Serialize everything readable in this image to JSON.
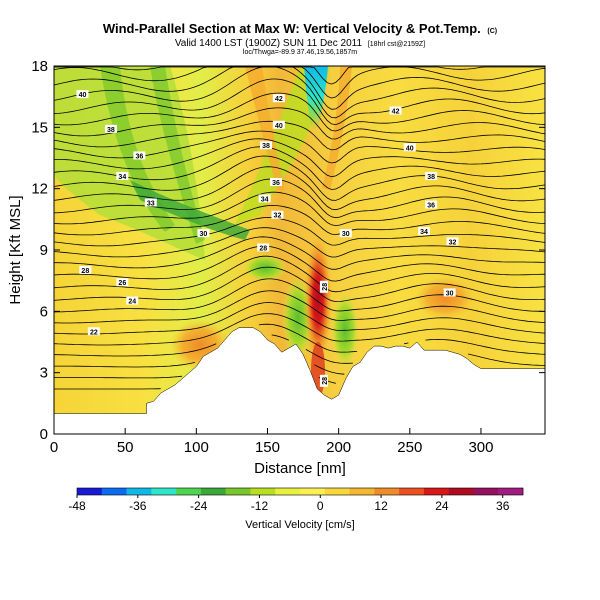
{
  "chart_data": {
    "type": "heatmap",
    "title": "Wind-Parallel Section at Max W: Vertical Velocity & Pot.Temp.",
    "copyright": "(C)",
    "subtitle": "Valid 1400 LST (1900Z) SUN 11 Dec 2011",
    "subtitle_tag": "[18hrl cst@2159Z]",
    "location_line": "loc/Thwga=-89.9 37.46,19.56,1857m",
    "xlabel": "Distance [nm]",
    "ylabel": "Height [Kft MSL]",
    "xlim": [
      0,
      345
    ],
    "ylim": [
      0,
      18
    ],
    "xticks": [
      0,
      50,
      100,
      150,
      200,
      250,
      300
    ],
    "yticks": [
      0,
      3,
      6,
      9,
      12,
      15,
      18
    ],
    "colorbar": {
      "label": "Vertical Velocity [cm/s]",
      "range": [
        -48,
        40
      ],
      "ticks": [
        -48,
        -36,
        -24,
        -12,
        0,
        12,
        24,
        36
      ],
      "colors": [
        "#1a1ad6",
        "#0a6cf0",
        "#10b8e8",
        "#2ee6c8",
        "#4cd650",
        "#3aa83a",
        "#78c828",
        "#b8e020",
        "#e8f040",
        "#fcf050",
        "#f8d838",
        "#f4b830",
        "#f08c28",
        "#ec5020",
        "#d81818",
        "#b00c20",
        "#961060",
        "#a01c80"
      ]
    },
    "terrain": {
      "x": [
        0,
        60,
        60,
        65,
        65,
        70,
        75,
        80,
        85,
        90,
        95,
        100,
        105,
        110,
        115,
        120,
        125,
        130,
        135,
        140,
        145,
        150,
        155,
        160,
        165,
        170,
        175,
        180,
        185,
        190,
        195,
        200,
        205,
        210,
        215,
        220,
        225,
        230,
        235,
        240,
        245,
        250,
        255,
        260,
        265,
        270,
        275,
        280,
        285,
        290,
        295,
        300,
        345
      ],
      "height": [
        1.0,
        1.0,
        1.0,
        1.0,
        1.5,
        1.6,
        2.0,
        2.2,
        2.4,
        2.7,
        3.0,
        3.3,
        3.8,
        4.0,
        4.2,
        4.6,
        5.0,
        5.2,
        5.2,
        5.2,
        5.0,
        4.6,
        4.4,
        4.0,
        4.2,
        4.4,
        3.9,
        3.1,
        2.2,
        1.9,
        1.7,
        1.9,
        2.7,
        3.3,
        3.5,
        4.0,
        4.3,
        4.3,
        4.2,
        4.3,
        4.3,
        4.2,
        4.5,
        4.1,
        4.1,
        4.1,
        4.1,
        4.0,
        3.9,
        3.7,
        3.4,
        3.2,
        3.2
      ]
    },
    "contour_labels": [
      {
        "value": "40",
        "x": 20,
        "y": 16.6
      },
      {
        "value": "38",
        "x": 40,
        "y": 14.9
      },
      {
        "value": "36",
        "x": 60,
        "y": 13.6
      },
      {
        "value": "34",
        "x": 48,
        "y": 12.6
      },
      {
        "value": "33",
        "x": 68,
        "y": 11.3
      },
      {
        "value": "30",
        "x": 105,
        "y": 9.8
      },
      {
        "value": "28",
        "x": 22,
        "y": 8.0
      },
      {
        "value": "26",
        "x": 48,
        "y": 7.4
      },
      {
        "value": "24",
        "x": 55,
        "y": 6.5
      },
      {
        "value": "22",
        "x": 28,
        "y": 5.0
      },
      {
        "value": "42",
        "x": 158,
        "y": 16.4
      },
      {
        "value": "40",
        "x": 158,
        "y": 15.1
      },
      {
        "value": "38",
        "x": 149,
        "y": 14.1
      },
      {
        "value": "36",
        "x": 156,
        "y": 12.3
      },
      {
        "value": "34",
        "x": 148,
        "y": 11.5
      },
      {
        "value": "32",
        "x": 157,
        "y": 10.7
      },
      {
        "value": "28",
        "x": 147,
        "y": 9.1
      },
      {
        "value": "30",
        "x": 205,
        "y": 9.8
      },
      {
        "value": "42",
        "x": 240,
        "y": 15.8
      },
      {
        "value": "40",
        "x": 250,
        "y": 14.0
      },
      {
        "value": "38",
        "x": 265,
        "y": 12.6
      },
      {
        "value": "36",
        "x": 265,
        "y": 11.2
      },
      {
        "value": "34",
        "x": 260,
        "y": 9.9
      },
      {
        "value": "32",
        "x": 280,
        "y": 9.4
      },
      {
        "value": "30",
        "x": 278,
        "y": 6.9
      },
      {
        "value": "28",
        "x": 190,
        "y": 7.2
      },
      {
        "value": "28",
        "x": 190,
        "y": 2.6
      }
    ]
  }
}
